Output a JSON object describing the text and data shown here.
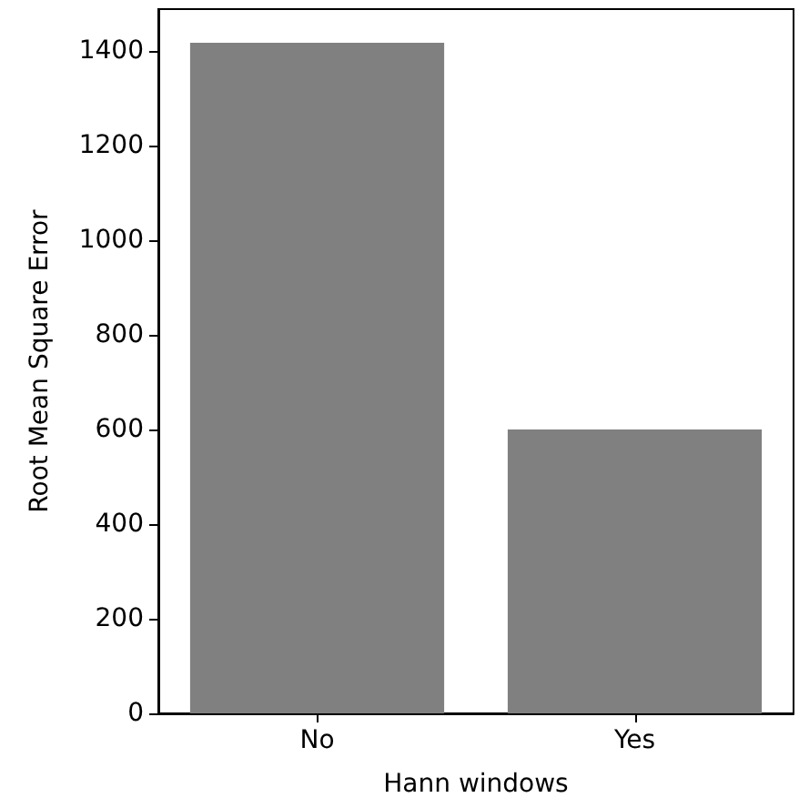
{
  "chart_data": {
    "type": "bar",
    "xlabel": "Hann windows",
    "ylabel": "Root Mean Square Error",
    "categories": [
      "No",
      "Yes"
    ],
    "values": [
      1418,
      600
    ],
    "color": "#808080",
    "ylim": [
      0,
      1489
    ],
    "yticks": [
      0,
      200,
      400,
      600,
      800,
      1000,
      1200,
      1400
    ],
    "grid": false
  }
}
